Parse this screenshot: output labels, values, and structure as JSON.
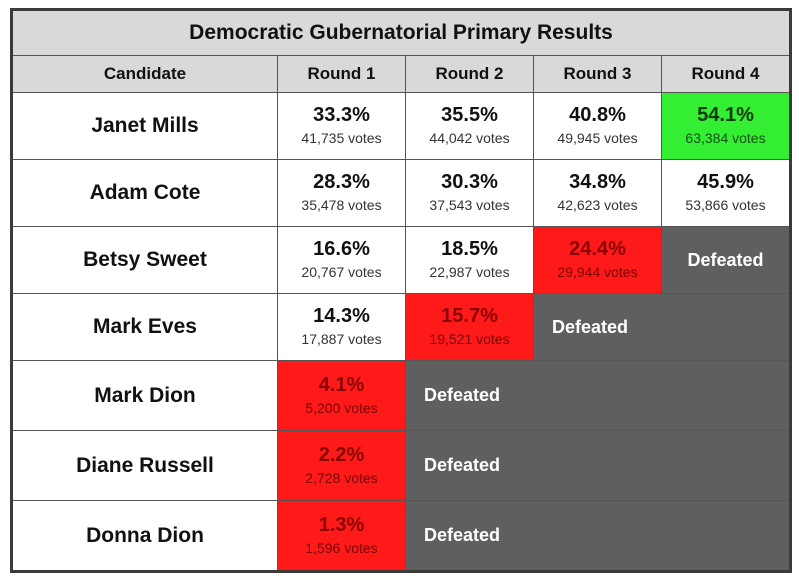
{
  "title": "Democratic Gubernatorial Primary Results",
  "headers": {
    "candidate": "Candidate",
    "round1": "Round 1",
    "round2": "Round 2",
    "round3": "Round 3",
    "round4": "Round 4"
  },
  "defeated_label": "Defeated",
  "colors": {
    "eliminated": "#ff1a1a",
    "winner": "#33ee33",
    "defeated_fill": "#5f5f5f",
    "header_fill": "#d9d9d9"
  },
  "candidates": [
    {
      "name": "Janet Mills",
      "r1": {
        "pct": "33.3%",
        "votes": "41,735 votes"
      },
      "r2": {
        "pct": "35.5%",
        "votes": "44,042 votes"
      },
      "r3": {
        "pct": "40.8%",
        "votes": "49,945 votes"
      },
      "r4": {
        "pct": "54.1%",
        "votes": "63,384 votes"
      }
    },
    {
      "name": "Adam Cote",
      "r1": {
        "pct": "28.3%",
        "votes": "35,478 votes"
      },
      "r2": {
        "pct": "30.3%",
        "votes": "37,543 votes"
      },
      "r3": {
        "pct": "34.8%",
        "votes": "42,623 votes"
      },
      "r4": {
        "pct": "45.9%",
        "votes": "53,866 votes"
      }
    },
    {
      "name": "Betsy Sweet",
      "r1": {
        "pct": "16.6%",
        "votes": "20,767 votes"
      },
      "r2": {
        "pct": "18.5%",
        "votes": "22,987 votes"
      },
      "r3": {
        "pct": "24.4%",
        "votes": "29,944 votes"
      }
    },
    {
      "name": "Mark Eves",
      "r1": {
        "pct": "14.3%",
        "votes": "17,887 votes"
      },
      "r2": {
        "pct": "15.7%",
        "votes": "19,521 votes"
      }
    },
    {
      "name": "Mark Dion",
      "r1": {
        "pct": "4.1%",
        "votes": "5,200 votes"
      }
    },
    {
      "name": "Diane Russell",
      "r1": {
        "pct": "2.2%",
        "votes": "2,728 votes"
      }
    },
    {
      "name": "Donna Dion",
      "r1": {
        "pct": "1.3%",
        "votes": "1,596 votes"
      }
    }
  ]
}
